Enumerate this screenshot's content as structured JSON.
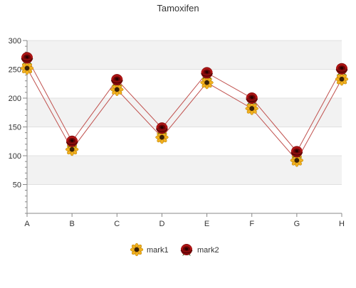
{
  "chart_data": {
    "type": "line",
    "title": "Tamoxifen",
    "xlabel": "",
    "ylabel": "",
    "categories": [
      "A",
      "B",
      "C",
      "D",
      "E",
      "F",
      "G",
      "H"
    ],
    "ylim": [
      0,
      300
    ],
    "yticks": [
      50,
      100,
      150,
      200,
      250,
      300
    ],
    "grid": true,
    "legend_position": "bottom",
    "series": [
      {
        "name": "mark1",
        "values": [
          252,
          111,
          215,
          132,
          227,
          182,
          92,
          233
        ],
        "color": "#c0504d",
        "marker": "sunflower-icon"
      },
      {
        "name": "mark2",
        "values": [
          270,
          125,
          232,
          148,
          244,
          200,
          107,
          251
        ],
        "color": "#c0504d",
        "marker": "rose-icon"
      }
    ]
  }
}
